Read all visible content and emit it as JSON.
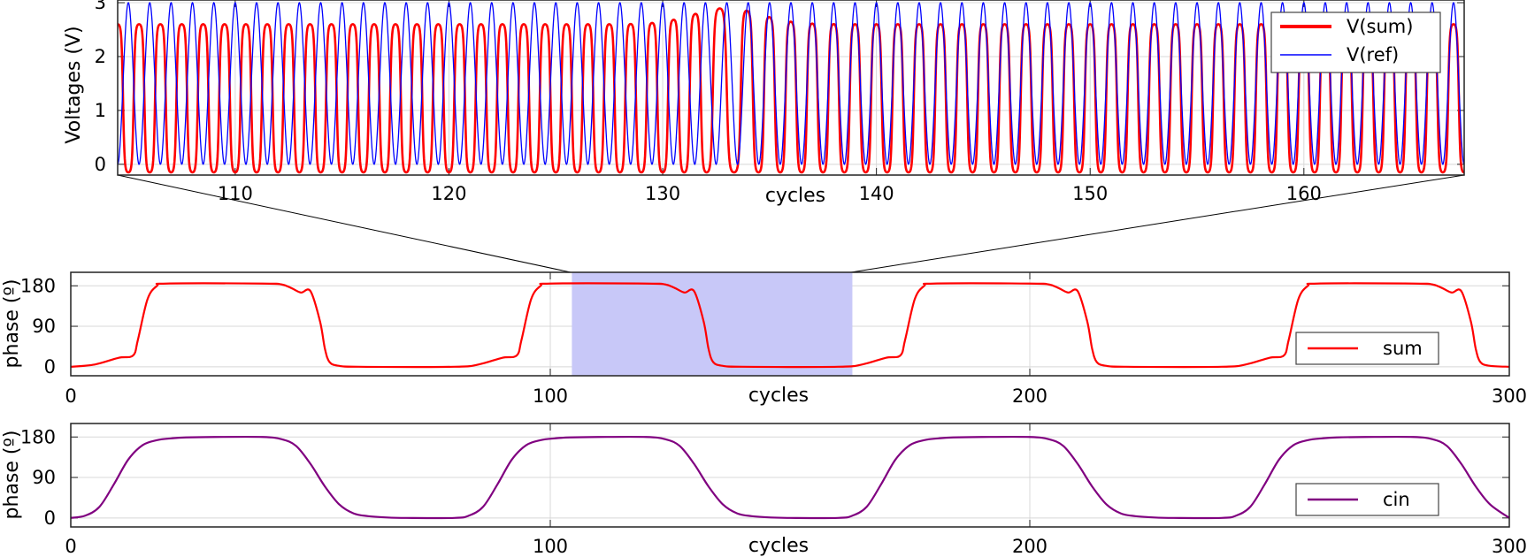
{
  "chart_data": [
    {
      "id": "zoom",
      "type": "line",
      "xlabel": "cycles",
      "ylabel": "Voltages (V)",
      "xlim": [
        104.5,
        167.5
      ],
      "ylim": [
        -0.2,
        3.05
      ],
      "xticks": [
        110,
        120,
        130,
        140,
        150,
        160
      ],
      "yticks": [
        0,
        1,
        2,
        3
      ],
      "legend_position": "top-right",
      "grid": true,
      "series": [
        {
          "name": "V(sum)",
          "color": "#ff0000",
          "amplitude_peak": 2.6,
          "amplitude_min": -0.15,
          "note_peak_around_cycle_133": 2.9
        },
        {
          "name": "V(ref)",
          "color": "#0000ff",
          "amplitude_peak": 3.0,
          "amplitude_min": 0.0
        }
      ]
    },
    {
      "id": "phase-sum",
      "type": "line",
      "xlabel": "cycles",
      "ylabel": "phase (º)",
      "xlim": [
        0,
        300
      ],
      "ylim": [
        -20,
        210
      ],
      "xticks": [
        0,
        100,
        200,
        300
      ],
      "yticks": [
        0,
        90,
        180
      ],
      "legend_position": "bottom-right",
      "grid": true,
      "highlight_range": [
        104.5,
        163
      ],
      "series": [
        {
          "name": "sum",
          "color": "#ff0000",
          "x": [
            0,
            5,
            10,
            13,
            14,
            16,
            18,
            20,
            40,
            44,
            46,
            48,
            50,
            52,
            53,
            54,
            56,
            60,
            80,
            85,
            90,
            93,
            94,
            96,
            98,
            100,
            120,
            124,
            126,
            128,
            130,
            132,
            133,
            134,
            136,
            140,
            160,
            165,
            170,
            173,
            174,
            176,
            178,
            180,
            200,
            204,
            206,
            208,
            210,
            212,
            213,
            214,
            216,
            220,
            240,
            245,
            250,
            253,
            254,
            256,
            258,
            260,
            280,
            284,
            286,
            288,
            290,
            292,
            293,
            294,
            296,
            300
          ],
          "y": [
            0,
            5,
            20,
            25,
            60,
            150,
            180,
            185,
            185,
            183,
            175,
            165,
            168,
            100,
            40,
            10,
            2,
            0,
            0,
            5,
            20,
            25,
            60,
            150,
            180,
            185,
            185,
            183,
            175,
            165,
            168,
            100,
            40,
            10,
            2,
            0,
            0,
            5,
            20,
            25,
            60,
            150,
            180,
            185,
            185,
            183,
            175,
            165,
            168,
            100,
            40,
            10,
            2,
            0,
            0,
            5,
            20,
            25,
            60,
            150,
            180,
            185,
            185,
            183,
            175,
            165,
            168,
            100,
            40,
            10,
            2,
            0
          ]
        }
      ]
    },
    {
      "id": "phase-cin",
      "type": "line",
      "xlabel": "cycles",
      "ylabel": "phase (º)",
      "xlim": [
        0,
        300
      ],
      "ylim": [
        -20,
        210
      ],
      "xticks": [
        0,
        100,
        200,
        300
      ],
      "yticks": [
        0,
        90,
        180
      ],
      "legend_position": "bottom-right",
      "grid": true,
      "series": [
        {
          "name": "cin",
          "color": "#800080",
          "x": [
            0,
            3,
            6,
            9,
            12,
            15,
            18,
            21,
            24,
            30,
            40,
            44,
            47,
            50,
            53,
            56,
            59,
            62,
            66,
            70,
            80,
            83,
            86,
            89,
            92,
            95,
            98,
            101,
            104,
            110,
            120,
            124,
            127,
            130,
            133,
            136,
            139,
            142,
            146,
            150,
            160,
            163,
            166,
            169,
            172,
            175,
            178,
            181,
            184,
            190,
            200,
            204,
            207,
            210,
            213,
            216,
            219,
            222,
            226,
            230,
            240,
            243,
            246,
            249,
            252,
            255,
            258,
            261,
            264,
            270,
            280,
            284,
            287,
            290,
            293,
            296,
            300
          ],
          "y": [
            0,
            5,
            25,
            75,
            130,
            162,
            173,
            177,
            179,
            180,
            180,
            175,
            160,
            120,
            70,
            30,
            10,
            4,
            1,
            0,
            0,
            5,
            25,
            75,
            130,
            162,
            173,
            177,
            179,
            180,
            180,
            175,
            160,
            120,
            70,
            30,
            10,
            4,
            1,
            0,
            0,
            5,
            25,
            75,
            130,
            162,
            173,
            177,
            179,
            180,
            180,
            175,
            160,
            120,
            70,
            30,
            10,
            4,
            1,
            0,
            0,
            5,
            25,
            75,
            130,
            162,
            173,
            177,
            179,
            180,
            180,
            175,
            160,
            120,
            70,
            30,
            0
          ]
        }
      ]
    }
  ]
}
